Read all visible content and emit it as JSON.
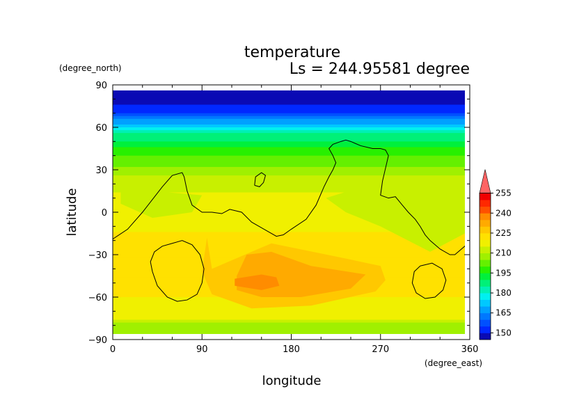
{
  "chart_data": {
    "type": "heatmap",
    "title": "temperature",
    "subtitle": "Ls = 244.95581 degree",
    "xlabel": "longitude",
    "ylabel": "latitude",
    "x_units": "(degree_east)",
    "y_units": "(degree_north)",
    "xlim": [
      0,
      360
    ],
    "ylim": [
      -90,
      90
    ],
    "x_ticks": [
      "0",
      "90",
      "180",
      "270",
      "360"
    ],
    "y_ticks": [
      "90",
      "60",
      "30",
      "0",
      "−30",
      "−60",
      "−90"
    ],
    "x_tick_values": [
      0,
      90,
      180,
      270,
      360
    ],
    "y_tick_values": [
      90,
      60,
      30,
      0,
      -30,
      -60,
      -90
    ],
    "colorbar": {
      "levels": [
        145,
        150,
        155,
        160,
        165,
        170,
        175,
        180,
        185,
        190,
        195,
        200,
        205,
        210,
        215,
        220,
        225,
        230,
        235,
        240,
        245,
        250,
        255,
        260
      ],
      "tick_labels": [
        "150",
        "165",
        "180",
        "195",
        "210",
        "225",
        "240",
        "255"
      ],
      "tick_values": [
        150,
        165,
        180,
        195,
        210,
        225,
        240,
        255
      ],
      "colors": [
        "#0a0ab4",
        "#0028ff",
        "#0050ff",
        "#0078ff",
        "#00a0ff",
        "#00c8ff",
        "#00f0f0",
        "#00f0b4",
        "#00f078",
        "#00f03c",
        "#28f000",
        "#64f000",
        "#a0f000",
        "#c8f000",
        "#f0f000",
        "#ffe100",
        "#ffc800",
        "#ffaa00",
        "#ff8c00",
        "#ff5000",
        "#ff2800",
        "#f00000",
        "#ff6464"
      ],
      "extend": "max"
    },
    "lat_profile": [
      {
        "lat": 85,
        "value": 147
      },
      {
        "lat": 75,
        "value": 150
      },
      {
        "lat": 70,
        "value": 156
      },
      {
        "lat": 65,
        "value": 165
      },
      {
        "lat": 60,
        "value": 176
      },
      {
        "lat": 55,
        "value": 185
      },
      {
        "lat": 50,
        "value": 190
      },
      {
        "lat": 45,
        "value": 195
      },
      {
        "lat": 40,
        "value": 200
      },
      {
        "lat": 30,
        "value": 207
      },
      {
        "lat": 20,
        "value": 213
      },
      {
        "lat": 10,
        "value": 216
      },
      {
        "lat": 0,
        "value": 218
      },
      {
        "lat": -15,
        "value": 220
      },
      {
        "lat": -30,
        "value": 221
      },
      {
        "lat": -45,
        "value": 221
      },
      {
        "lat": -60,
        "value": 220
      },
      {
        "lat": -70,
        "value": 218
      },
      {
        "lat": -75,
        "value": 215
      },
      {
        "lat": -80,
        "value": 208
      },
      {
        "lat": -85,
        "value": 206
      }
    ],
    "warm_regions": [
      {
        "value": 228,
        "lon": [
          95,
          100,
          160,
          230,
          270,
          275,
          265,
          200,
          140,
          100,
          90
        ],
        "lat": [
          -18,
          -40,
          -22,
          -32,
          -38,
          -48,
          -56,
          -66,
          -68,
          -58,
          -42
        ]
      },
      {
        "value": 233,
        "lon": [
          125,
          135,
          160,
          200,
          255,
          240,
          190,
          150,
          125
        ],
        "lat": [
          -45,
          -30,
          -28,
          -38,
          -44,
          -54,
          -60,
          -60,
          -55
        ]
      },
      {
        "value": 238,
        "lon": [
          123,
          150,
          165,
          168,
          150,
          123
        ],
        "lat": [
          -47,
          -44,
          -46,
          -52,
          -55,
          -52
        ]
      }
    ],
    "cool_regions": [
      {
        "value": 214,
        "lon": [
          8,
          40,
          90,
          80,
          40,
          8
        ],
        "lat": [
          22,
          15,
          12,
          0,
          -4,
          6
        ]
      },
      {
        "value": 214,
        "lon": [
          215,
          270,
          330,
          355,
          355,
          320,
          270,
          235
        ],
        "lat": [
          10,
          22,
          22,
          15,
          -15,
          -28,
          -10,
          0
        ]
      },
      {
        "value": 210,
        "lon": [
          300,
          335,
          350,
          340,
          305
        ],
        "lat": [
          12,
          18,
          5,
          -8,
          -5
        ]
      }
    ],
    "contour_lines": [
      {
        "lon": [
          0,
          15,
          30,
          50,
          60,
          70,
          72,
          75,
          80,
          90,
          100,
          110,
          118,
          130,
          140,
          155,
          165,
          172,
          180,
          195,
          205,
          213,
          218,
          222,
          225,
          222,
          218,
          222,
          230,
          235,
          240,
          250,
          262,
          270,
          275,
          278,
          276,
          274,
          272,
          270,
          278,
          285,
          292,
          298,
          305,
          310,
          315,
          320,
          330,
          340,
          345,
          355,
          360
        ],
        "lat": [
          -19,
          -12,
          0,
          18,
          26,
          28,
          25,
          15,
          5,
          0,
          0,
          -1,
          2,
          0,
          -7,
          -13,
          -17,
          -16,
          -12,
          -5,
          5,
          18,
          25,
          30,
          35,
          40,
          45,
          48,
          50,
          51,
          50,
          47,
          45,
          45,
          44,
          40,
          34,
          28,
          22,
          12,
          10,
          11,
          5,
          0,
          -5,
          -10,
          -16,
          -20,
          -26,
          -30,
          -30,
          -24,
          -21
        ]
      },
      {
        "lon": [
          143,
          148,
          152,
          154,
          150,
          144,
          143
        ],
        "lat": [
          19,
          18,
          21,
          26,
          28,
          25,
          19
        ]
      },
      {
        "lon": [
          60,
          70,
          80,
          88,
          92,
          90,
          85,
          75,
          65,
          55,
          45,
          40,
          38,
          42,
          50,
          60
        ],
        "lat": [
          -22,
          -20,
          -23,
          -30,
          -40,
          -50,
          -58,
          -62,
          -63,
          -60,
          -52,
          -42,
          -35,
          -28,
          -24,
          -22
        ]
      },
      {
        "lon": [
          310,
          322,
          332,
          336,
          333,
          325,
          315,
          306,
          302,
          304,
          310
        ],
        "lat": [
          -38,
          -36,
          -40,
          -48,
          -55,
          -60,
          -61,
          -57,
          -50,
          -42,
          -38
        ]
      }
    ]
  }
}
